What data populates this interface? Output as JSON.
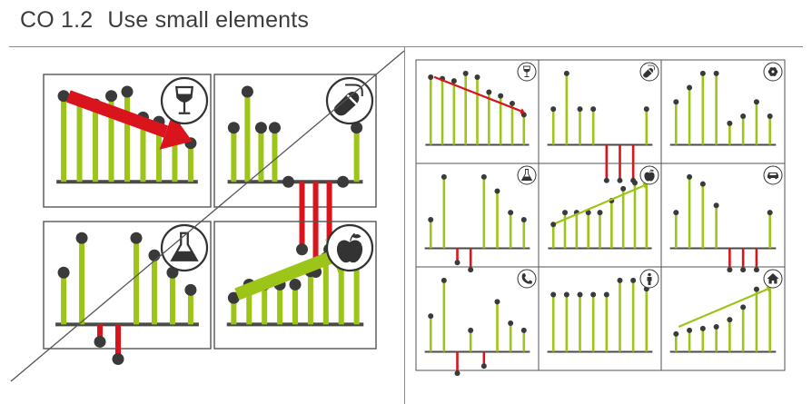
{
  "header": {
    "section": "CO 1.2",
    "title": "Use small elements"
  },
  "colors": {
    "positive": "#9dc519",
    "negative": "#d9141c",
    "dot": "#3a3a3a",
    "baseline": "#4a4a4a",
    "frame": "#555555",
    "trend_up": "#9dc519",
    "trend_down": "#d9141c"
  },
  "left_examples": [
    {
      "name": "wine",
      "icon": "wine-glass-icon",
      "values": [
        10,
        9.5,
        9,
        10,
        10.5,
        7.5,
        7,
        6.5,
        4.5
      ],
      "trend": "down"
    },
    {
      "name": "pills",
      "icon": "pill-icon",
      "values": [
        1.2,
        2,
        1.2,
        1.2,
        0,
        -1.5,
        -2,
        -1.5,
        0,
        1.2
      ],
      "trend": "none"
    },
    {
      "name": "chemistry",
      "icon": "flask-icon",
      "values": [
        3,
        5,
        -1,
        -2,
        5,
        4,
        3,
        2
      ],
      "trend": "none"
    },
    {
      "name": "fruit",
      "icon": "apple-icon",
      "values": [
        2,
        3,
        3,
        3,
        3,
        4,
        5,
        6,
        6.5
      ],
      "trend": "up"
    }
  ],
  "right_examples": [
    {
      "name": "wine",
      "icon": "wine-glass-icon",
      "values": [
        9,
        8.8,
        8.5,
        9.5,
        9,
        7,
        6.5,
        5.5,
        4
      ],
      "trend": "down"
    },
    {
      "name": "tablets",
      "icon": "pill-icon",
      "values": [
        1,
        2,
        1,
        1,
        -1,
        -1,
        -1,
        1
      ],
      "trend": "none"
    },
    {
      "name": "flower",
      "icon": "flower-icon",
      "values": [
        3,
        4,
        5,
        5,
        1.5,
        2,
        3,
        2
      ],
      "trend": "none"
    },
    {
      "name": "chemistry",
      "icon": "flask-icon",
      "values": [
        2,
        5,
        -1,
        -1.5,
        5,
        4,
        2.5,
        2
      ],
      "trend": "none"
    },
    {
      "name": "fruit",
      "icon": "apple-icon",
      "values": [
        2,
        3,
        3,
        3,
        3,
        4,
        5,
        5.5,
        6
      ],
      "trend": "up"
    },
    {
      "name": "car",
      "icon": "car-icon",
      "values": [
        2.5,
        5,
        4.5,
        3,
        -1.5,
        -1.5,
        -1.5,
        2.5
      ],
      "trend": "none"
    },
    {
      "name": "phone",
      "icon": "phone-icon",
      "values": [
        2.5,
        5,
        -1.5,
        1.5,
        -1,
        3.5,
        2,
        1.5
      ],
      "trend": "none"
    },
    {
      "name": "person",
      "icon": "person-icon",
      "values": [
        2,
        2,
        2,
        2,
        2,
        2.5,
        2.5,
        2.2
      ],
      "trend": "none"
    },
    {
      "name": "house",
      "icon": "house-icon",
      "values": [
        1,
        1.2,
        1.3,
        1.4,
        1.8,
        2.5,
        3.5,
        4
      ],
      "trend": "up"
    }
  ]
}
